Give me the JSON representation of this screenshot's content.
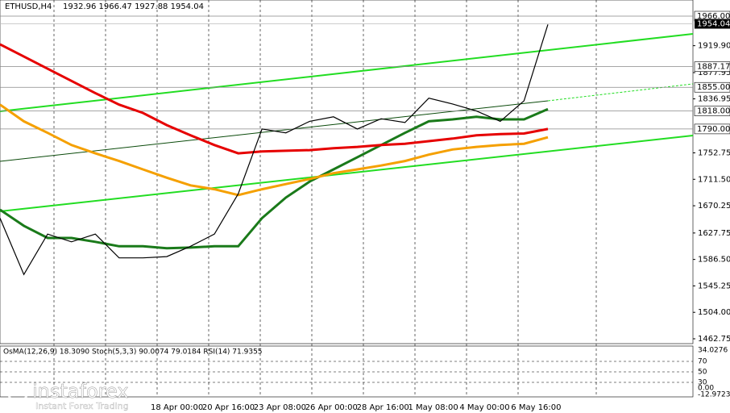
{
  "chart_data": {
    "type": "line",
    "title": "ETHUSD,H4",
    "ohlc_text": "1932.96 1966.47 1927.88 1954.04",
    "x_labels": [
      "18 Apr 00:00",
      "20 Apr 16:00",
      "23 Apr 08:00",
      "26 Apr 00:00",
      "28 Apr 16:00",
      "1 May 08:00",
      "4 May 00:00",
      "6 May 16:00"
    ],
    "ylim": [
      1462.75,
      1966
    ],
    "yticks": [
      {
        "value": 1919.9,
        "label": "1919.90"
      },
      {
        "value": 1877.95,
        "label": "1877.95"
      },
      {
        "value": 1836.95,
        "label": "1836.95"
      },
      {
        "value": 1752.75,
        "label": "1752.75"
      },
      {
        "value": 1711.5,
        "label": "1711.50"
      },
      {
        "value": 1670.25,
        "label": "1670.25"
      },
      {
        "value": 1627.75,
        "label": "1627.75"
      },
      {
        "value": 1586.5,
        "label": "1586.50"
      },
      {
        "value": 1545.25,
        "label": "1545.25"
      },
      {
        "value": 1504,
        "label": "1504.00"
      },
      {
        "value": 1462.75,
        "label": "1462.75"
      }
    ],
    "levels": [
      {
        "value": 1966,
        "label": "1966.00"
      },
      {
        "value": 1887.17,
        "label": "1887.17"
      },
      {
        "value": 1855,
        "label": "1855.00"
      },
      {
        "value": 1818,
        "label": "1818.00"
      },
      {
        "value": 1790,
        "label": "1790.00"
      }
    ],
    "current": {
      "value": 1954.04,
      "label": "1954.04"
    },
    "series": [
      {
        "name": "price",
        "color": "#000000",
        "values": [
          1651,
          1563,
          1626,
          1614,
          1626,
          1589,
          1589,
          1591,
          1607,
          1626,
          1689,
          1790,
          1784,
          1802,
          1809,
          1790,
          1806,
          1800,
          1838,
          1829,
          1818,
          1802,
          1834,
          1953
        ]
      },
      {
        "name": "ma-red",
        "color": "#e60000",
        "values": [
          1922,
          1903,
          1884,
          1865,
          1846,
          1828,
          1815,
          1796,
          1780,
          1765,
          1752,
          1755,
          1756,
          1757,
          1760,
          1762,
          1765,
          1767,
          1771,
          1775,
          1780,
          1782,
          1783,
          1790
        ]
      },
      {
        "name": "ma-orange",
        "color": "#f5a000",
        "values": [
          1828,
          1802,
          1784,
          1765,
          1752,
          1740,
          1727,
          1714,
          1702,
          1696,
          1687,
          1696,
          1704,
          1712,
          1721,
          1727,
          1733,
          1740,
          1750,
          1758,
          1762,
          1765,
          1767,
          1777
        ]
      },
      {
        "name": "ma-green",
        "color": "#1a7a1a",
        "values": [
          1664,
          1639,
          1620,
          1620,
          1614,
          1607,
          1607,
          1604,
          1605,
          1607,
          1607,
          1651,
          1683,
          1708,
          1727,
          1746,
          1765,
          1784,
          1802,
          1805,
          1809,
          1805,
          1805,
          1821
        ]
      }
    ],
    "indicator_text": "OsMA(12,26,9) 18.3090  Stoch(5,3,3) 90.0074 79.0184  RSI(14) 71.9355",
    "indicator_axis": [
      "34.0276",
      "70",
      "50",
      "30",
      "0.00",
      "-12.9723"
    ],
    "logo": "instaforex",
    "logo_sub": "Instant Forex Trading"
  }
}
